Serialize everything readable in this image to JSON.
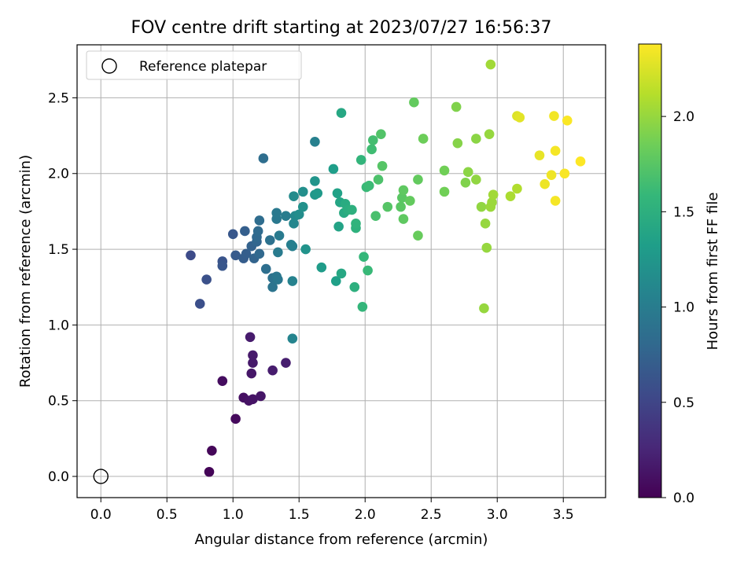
{
  "chart_data": {
    "type": "scatter",
    "title": "FOV centre drift starting at 2023/07/27 16:56:37",
    "xlabel": "Angular distance from reference (arcmin)",
    "ylabel": "Rotation from reference (arcmin)",
    "xlim": [
      -0.18,
      3.82
    ],
    "ylim": [
      -0.14,
      2.85
    ],
    "xticks": [
      0.0,
      0.5,
      1.0,
      1.5,
      2.0,
      2.5,
      3.0,
      3.5
    ],
    "xtick_labels": [
      "0.0",
      "0.5",
      "1.0",
      "1.5",
      "2.0",
      "2.5",
      "3.0",
      "3.5"
    ],
    "yticks": [
      0.0,
      0.5,
      1.0,
      1.5,
      2.0,
      2.5
    ],
    "ytick_labels": [
      "0.0",
      "0.5",
      "1.0",
      "1.5",
      "2.0",
      "2.5"
    ],
    "grid": true,
    "legend": {
      "position": "top-left",
      "entries": [
        {
          "label": "Reference platepar",
          "marker": "open-circle",
          "color": "#000000"
        }
      ]
    },
    "reference_point": {
      "x": 0.0,
      "y": 0.0
    },
    "colorbar": {
      "label": "Hours from first FF file",
      "range": [
        0.0,
        2.38
      ],
      "ticks": [
        0.0,
        0.5,
        1.0,
        1.5,
        2.0
      ],
      "tick_labels": [
        "0.0",
        "0.5",
        "1.0",
        "1.5",
        "2.0"
      ],
      "colormap": [
        "#440154",
        "#482878",
        "#3e4989",
        "#31688e",
        "#26828e",
        "#1f9e89",
        "#35b779",
        "#6ece58",
        "#b5de2b",
        "#fde725"
      ]
    },
    "points": [
      {
        "x": 0.82,
        "y": 0.03,
        "c": 0.02
      },
      {
        "x": 0.84,
        "y": 0.17,
        "c": 0.04
      },
      {
        "x": 1.02,
        "y": 0.38,
        "c": 0.06
      },
      {
        "x": 0.92,
        "y": 0.63,
        "c": 0.08
      },
      {
        "x": 1.08,
        "y": 0.52,
        "c": 0.1
      },
      {
        "x": 1.12,
        "y": 0.5,
        "c": 0.12
      },
      {
        "x": 1.15,
        "y": 0.51,
        "c": 0.13
      },
      {
        "x": 1.21,
        "y": 0.53,
        "c": 0.14
      },
      {
        "x": 1.14,
        "y": 0.68,
        "c": 0.15
      },
      {
        "x": 1.15,
        "y": 0.75,
        "c": 0.16
      },
      {
        "x": 1.15,
        "y": 0.8,
        "c": 0.17
      },
      {
        "x": 1.13,
        "y": 0.92,
        "c": 0.18
      },
      {
        "x": 1.3,
        "y": 0.7,
        "c": 0.19
      },
      {
        "x": 1.4,
        "y": 0.75,
        "c": 0.2
      },
      {
        "x": 0.68,
        "y": 1.46,
        "c": 0.55
      },
      {
        "x": 0.75,
        "y": 1.14,
        "c": 0.58
      },
      {
        "x": 0.8,
        "y": 1.3,
        "c": 0.6
      },
      {
        "x": 0.92,
        "y": 1.42,
        "c": 0.62
      },
      {
        "x": 0.92,
        "y": 1.39,
        "c": 0.64
      },
      {
        "x": 1.0,
        "y": 1.6,
        "c": 0.65
      },
      {
        "x": 1.02,
        "y": 1.46,
        "c": 0.68
      },
      {
        "x": 1.08,
        "y": 1.44,
        "c": 0.7
      },
      {
        "x": 1.1,
        "y": 1.47,
        "c": 0.71
      },
      {
        "x": 1.09,
        "y": 1.62,
        "c": 0.72
      },
      {
        "x": 1.14,
        "y": 1.52,
        "c": 0.74
      },
      {
        "x": 1.16,
        "y": 1.44,
        "c": 0.76
      },
      {
        "x": 1.18,
        "y": 1.55,
        "c": 0.78
      },
      {
        "x": 1.2,
        "y": 1.47,
        "c": 0.8
      },
      {
        "x": 1.18,
        "y": 1.58,
        "c": 0.8
      },
      {
        "x": 1.19,
        "y": 1.62,
        "c": 0.82
      },
      {
        "x": 1.2,
        "y": 1.69,
        "c": 0.84
      },
      {
        "x": 1.23,
        "y": 2.1,
        "c": 0.85
      },
      {
        "x": 1.25,
        "y": 1.37,
        "c": 0.86
      },
      {
        "x": 1.28,
        "y": 1.56,
        "c": 0.88
      },
      {
        "x": 1.3,
        "y": 1.31,
        "c": 0.9
      },
      {
        "x": 1.3,
        "y": 1.25,
        "c": 0.92
      },
      {
        "x": 1.33,
        "y": 1.32,
        "c": 0.94
      },
      {
        "x": 1.34,
        "y": 1.3,
        "c": 0.95
      },
      {
        "x": 1.33,
        "y": 1.7,
        "c": 0.96
      },
      {
        "x": 1.33,
        "y": 1.74,
        "c": 0.97
      },
      {
        "x": 1.35,
        "y": 1.59,
        "c": 0.98
      },
      {
        "x": 1.34,
        "y": 1.48,
        "c": 0.99
      },
      {
        "x": 1.4,
        "y": 1.72,
        "c": 1.0
      },
      {
        "x": 1.44,
        "y": 1.53,
        "c": 1.02
      },
      {
        "x": 1.45,
        "y": 1.52,
        "c": 1.03
      },
      {
        "x": 1.62,
        "y": 2.21,
        "c": 1.04
      },
      {
        "x": 1.45,
        "y": 1.29,
        "c": 1.06
      },
      {
        "x": 1.45,
        "y": 0.91,
        "c": 1.08
      },
      {
        "x": 1.46,
        "y": 1.67,
        "c": 1.1
      },
      {
        "x": 1.47,
        "y": 1.72,
        "c": 1.12
      },
      {
        "x": 1.46,
        "y": 1.85,
        "c": 1.14
      },
      {
        "x": 1.5,
        "y": 1.73,
        "c": 1.16
      },
      {
        "x": 1.53,
        "y": 1.88,
        "c": 1.18
      },
      {
        "x": 1.53,
        "y": 1.78,
        "c": 1.2
      },
      {
        "x": 1.55,
        "y": 1.5,
        "c": 1.22
      },
      {
        "x": 1.62,
        "y": 1.95,
        "c": 1.24
      },
      {
        "x": 1.62,
        "y": 1.86,
        "c": 1.26
      },
      {
        "x": 1.64,
        "y": 1.87,
        "c": 1.28
      },
      {
        "x": 1.67,
        "y": 1.38,
        "c": 1.3
      },
      {
        "x": 1.76,
        "y": 2.03,
        "c": 1.32
      },
      {
        "x": 1.78,
        "y": 1.29,
        "c": 1.34
      },
      {
        "x": 1.79,
        "y": 1.87,
        "c": 1.36
      },
      {
        "x": 1.8,
        "y": 1.65,
        "c": 1.38
      },
      {
        "x": 1.81,
        "y": 1.81,
        "c": 1.4
      },
      {
        "x": 1.82,
        "y": 2.4,
        "c": 1.42
      },
      {
        "x": 1.82,
        "y": 1.34,
        "c": 1.42
      },
      {
        "x": 1.84,
        "y": 1.74,
        "c": 1.44
      },
      {
        "x": 1.85,
        "y": 1.8,
        "c": 1.46
      },
      {
        "x": 1.87,
        "y": 1.76,
        "c": 1.48
      },
      {
        "x": 1.9,
        "y": 1.76,
        "c": 1.5
      },
      {
        "x": 1.92,
        "y": 1.25,
        "c": 1.5
      },
      {
        "x": 1.93,
        "y": 1.64,
        "c": 1.52
      },
      {
        "x": 1.93,
        "y": 1.67,
        "c": 1.54
      },
      {
        "x": 1.97,
        "y": 2.09,
        "c": 1.56
      },
      {
        "x": 1.98,
        "y": 1.12,
        "c": 1.57
      },
      {
        "x": 1.99,
        "y": 1.45,
        "c": 1.58
      },
      {
        "x": 2.01,
        "y": 1.91,
        "c": 1.6
      },
      {
        "x": 2.02,
        "y": 1.36,
        "c": 1.6
      },
      {
        "x": 2.03,
        "y": 1.92,
        "c": 1.62
      },
      {
        "x": 2.05,
        "y": 2.16,
        "c": 1.64
      },
      {
        "x": 2.06,
        "y": 2.22,
        "c": 1.66
      },
      {
        "x": 2.08,
        "y": 1.72,
        "c": 1.68
      },
      {
        "x": 2.1,
        "y": 1.96,
        "c": 1.7
      },
      {
        "x": 2.12,
        "y": 2.26,
        "c": 1.72
      },
      {
        "x": 2.13,
        "y": 2.05,
        "c": 1.74
      },
      {
        "x": 2.17,
        "y": 1.78,
        "c": 1.74
      },
      {
        "x": 2.27,
        "y": 1.78,
        "c": 1.76
      },
      {
        "x": 2.28,
        "y": 1.84,
        "c": 1.76
      },
      {
        "x": 2.29,
        "y": 1.89,
        "c": 1.78
      },
      {
        "x": 2.29,
        "y": 1.7,
        "c": 1.78
      },
      {
        "x": 2.34,
        "y": 1.82,
        "c": 1.8
      },
      {
        "x": 2.37,
        "y": 2.47,
        "c": 1.8
      },
      {
        "x": 2.4,
        "y": 1.96,
        "c": 1.8
      },
      {
        "x": 2.4,
        "y": 1.59,
        "c": 1.82
      },
      {
        "x": 2.44,
        "y": 2.23,
        "c": 1.84
      },
      {
        "x": 2.6,
        "y": 2.02,
        "c": 1.86
      },
      {
        "x": 2.6,
        "y": 1.88,
        "c": 1.86
      },
      {
        "x": 2.69,
        "y": 2.44,
        "c": 1.92
      },
      {
        "x": 2.7,
        "y": 2.2,
        "c": 1.94
      },
      {
        "x": 2.76,
        "y": 1.94,
        "c": 1.92
      },
      {
        "x": 2.78,
        "y": 2.01,
        "c": 1.96
      },
      {
        "x": 2.84,
        "y": 2.23,
        "c": 1.96
      },
      {
        "x": 2.84,
        "y": 1.96,
        "c": 1.98
      },
      {
        "x": 2.88,
        "y": 1.78,
        "c": 1.98
      },
      {
        "x": 2.9,
        "y": 1.11,
        "c": 2.0
      },
      {
        "x": 2.91,
        "y": 1.67,
        "c": 2.0
      },
      {
        "x": 2.92,
        "y": 1.51,
        "c": 2.0
      },
      {
        "x": 2.94,
        "y": 2.26,
        "c": 2.0
      },
      {
        "x": 2.95,
        "y": 1.78,
        "c": 2.02
      },
      {
        "x": 2.96,
        "y": 1.81,
        "c": 2.02
      },
      {
        "x": 2.95,
        "y": 2.72,
        "c": 2.04
      },
      {
        "x": 2.97,
        "y": 1.86,
        "c": 2.04
      },
      {
        "x": 3.1,
        "y": 1.85,
        "c": 2.08
      },
      {
        "x": 3.15,
        "y": 1.9,
        "c": 2.1
      },
      {
        "x": 3.15,
        "y": 2.38,
        "c": 2.26
      },
      {
        "x": 3.17,
        "y": 2.37,
        "c": 2.28
      },
      {
        "x": 3.32,
        "y": 2.12,
        "c": 2.3
      },
      {
        "x": 3.36,
        "y": 1.93,
        "c": 2.32
      },
      {
        "x": 3.41,
        "y": 1.99,
        "c": 2.33
      },
      {
        "x": 3.43,
        "y": 2.38,
        "c": 2.34
      },
      {
        "x": 3.44,
        "y": 1.82,
        "c": 2.35
      },
      {
        "x": 3.44,
        "y": 2.15,
        "c": 2.35
      },
      {
        "x": 3.51,
        "y": 2.0,
        "c": 2.36
      },
      {
        "x": 3.53,
        "y": 2.35,
        "c": 2.37
      },
      {
        "x": 3.63,
        "y": 2.08,
        "c": 2.38
      }
    ]
  }
}
